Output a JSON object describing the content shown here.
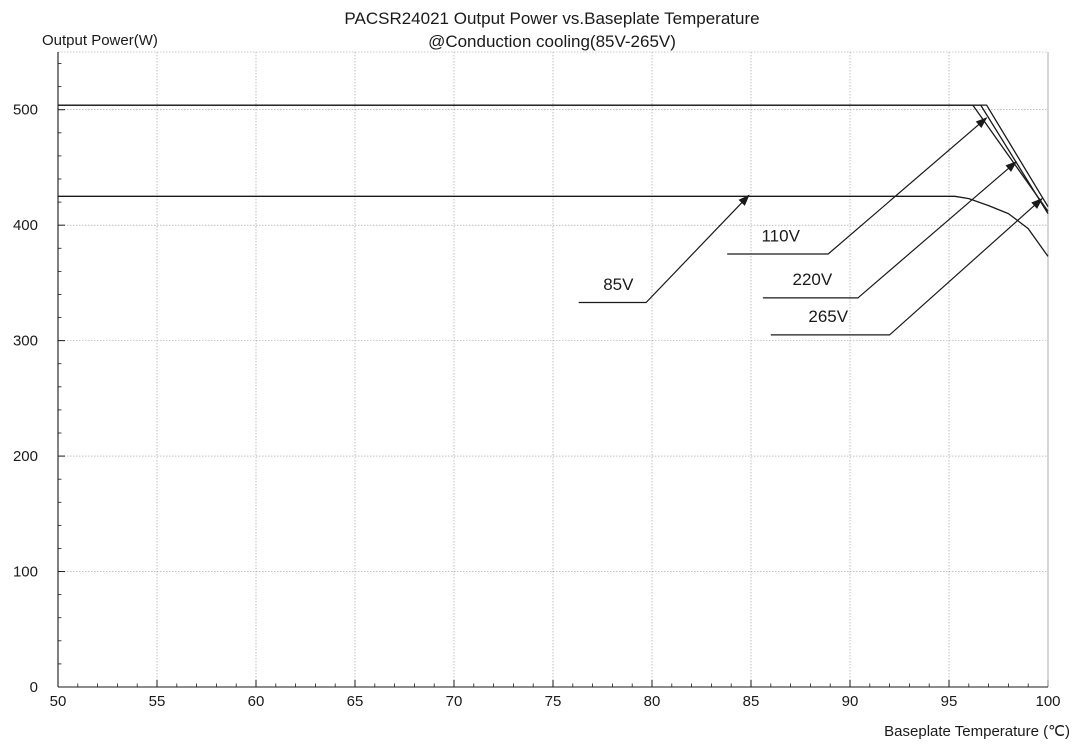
{
  "chart_data": {
    "type": "line",
    "title": "PACSR24021  Output Power vs.Baseplate  Temperature",
    "subtitle": "@Conduction cooling(85V-265V)",
    "xlabel": "Baseplate Temperature (℃)",
    "ylabel": "Output Power(W)",
    "xlim": [
      50,
      100
    ],
    "ylim": [
      0,
      550
    ],
    "xticks": [
      "50",
      "55",
      "60",
      "65",
      "70",
      "75",
      "80",
      "85",
      "90",
      "95",
      "100"
    ],
    "yticks": [
      "0",
      "100",
      "200",
      "300",
      "400",
      "500"
    ],
    "grid": true,
    "line_color": "#1a1a1a",
    "series": [
      {
        "name": "85V",
        "x": [
          50,
          95.3,
          96,
          97,
          98,
          99,
          100
        ],
        "y": [
          425,
          425,
          423,
          417,
          410,
          397,
          373
        ]
      },
      {
        "name": "110V",
        "x": [
          50,
          96.2,
          100
        ],
        "y": [
          504,
          504,
          412
        ]
      },
      {
        "name": "220V",
        "x": [
          50,
          96.6,
          100
        ],
        "y": [
          504,
          504,
          410
        ]
      },
      {
        "name": "265V",
        "x": [
          50,
          96.9,
          100
        ],
        "y": [
          504,
          504,
          416
        ]
      }
    ],
    "annotations": [
      {
        "text": "85V",
        "leader": [
          [
            76.3,
            333
          ],
          [
            79.7,
            333
          ],
          [
            84.9,
            426
          ]
        ],
        "label_at": [
          78.3,
          344
        ]
      },
      {
        "text": "110V",
        "leader": [
          [
            83.8,
            375
          ],
          [
            88.9,
            375
          ],
          [
            96.9,
            493
          ]
        ],
        "label_at": [
          86.5,
          386
        ]
      },
      {
        "text": "220V",
        "leader": [
          [
            85.6,
            337
          ],
          [
            90.4,
            337
          ],
          [
            98.4,
            455
          ]
        ],
        "label_at": [
          88.1,
          348
        ]
      },
      {
        "text": "265V",
        "leader": [
          [
            86.0,
            305
          ],
          [
            92.0,
            305
          ],
          [
            99.7,
            423
          ]
        ],
        "label_at": [
          88.9,
          316
        ]
      }
    ]
  }
}
